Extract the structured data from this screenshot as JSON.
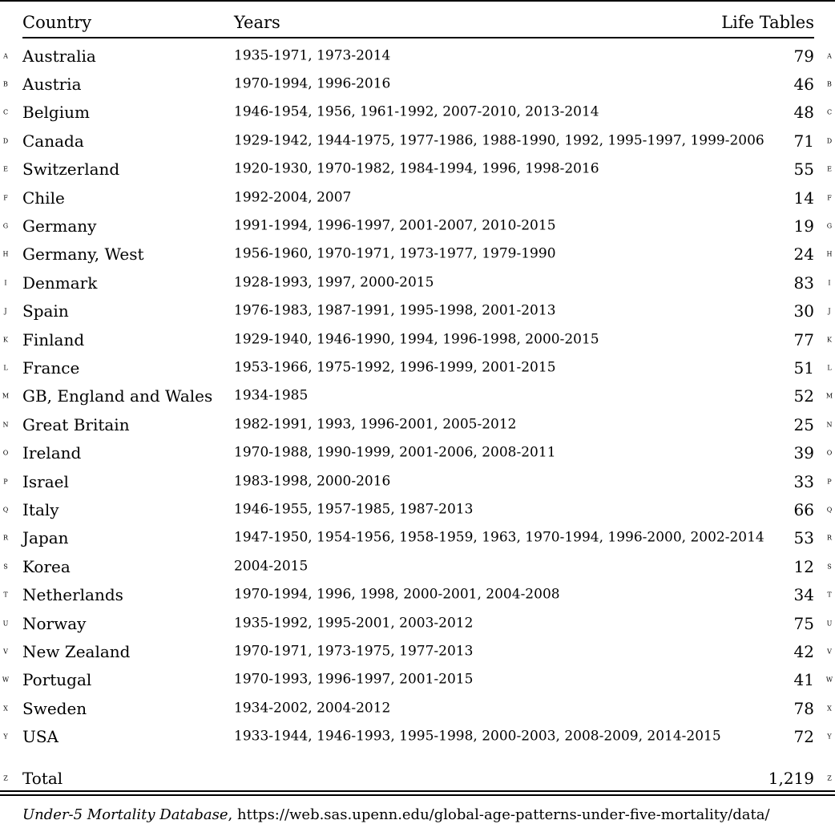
{
  "table": {
    "headers": {
      "country": "Country",
      "years": "Years",
      "life_tables": "Life Tables"
    },
    "rows": [
      {
        "label": "A",
        "country": "Australia",
        "years": "1935-1971, 1973-2014",
        "life_tables": "79"
      },
      {
        "label": "B",
        "country": "Austria",
        "years": "1970-1994, 1996-2016",
        "life_tables": "46"
      },
      {
        "label": "C",
        "country": "Belgium",
        "years": "1946-1954, 1956, 1961-1992, 2007-2010, 2013-2014",
        "life_tables": "48"
      },
      {
        "label": "D",
        "country": "Canada",
        "years": "1929-1942, 1944-1975, 1977-1986, 1988-1990, 1992, 1995-1997, 1999-2006",
        "life_tables": "71"
      },
      {
        "label": "E",
        "country": "Switzerland",
        "years": "1920-1930, 1970-1982, 1984-1994, 1996, 1998-2016",
        "life_tables": "55"
      },
      {
        "label": "F",
        "country": "Chile",
        "years": "1992-2004, 2007",
        "life_tables": "14"
      },
      {
        "label": "G",
        "country": "Germany",
        "years": "1991-1994, 1996-1997, 2001-2007, 2010-2015",
        "life_tables": "19"
      },
      {
        "label": "H",
        "country": "Germany, West",
        "years": "1956-1960, 1970-1971, 1973-1977, 1979-1990",
        "life_tables": "24"
      },
      {
        "label": "I",
        "country": "Denmark",
        "years": "1928-1993, 1997, 2000-2015",
        "life_tables": "83"
      },
      {
        "label": "J",
        "country": "Spain",
        "years": "1976-1983, 1987-1991, 1995-1998, 2001-2013",
        "life_tables": "30"
      },
      {
        "label": "K",
        "country": "Finland",
        "years": "1929-1940, 1946-1990, 1994, 1996-1998, 2000-2015",
        "life_tables": "77"
      },
      {
        "label": "L",
        "country": "France",
        "years": "1953-1966, 1975-1992, 1996-1999, 2001-2015",
        "life_tables": "51"
      },
      {
        "label": "M",
        "country": "GB, England and Wales",
        "years": "1934-1985",
        "life_tables": "52"
      },
      {
        "label": "N",
        "country": "Great Britain",
        "years": "1982-1991, 1993, 1996-2001, 2005-2012",
        "life_tables": "25"
      },
      {
        "label": "O",
        "country": "Ireland",
        "years": "1970-1988, 1990-1999, 2001-2006, 2008-2011",
        "life_tables": "39"
      },
      {
        "label": "P",
        "country": "Israel",
        "years": "1983-1998, 2000-2016",
        "life_tables": "33"
      },
      {
        "label": "Q",
        "country": "Italy",
        "years": "1946-1955, 1957-1985, 1987-2013",
        "life_tables": "66"
      },
      {
        "label": "R",
        "country": "Japan",
        "years": "1947-1950, 1954-1956, 1958-1959, 1963, 1970-1994, 1996-2000, 2002-2014",
        "life_tables": "53"
      },
      {
        "label": "S",
        "country": "Korea",
        "years": "2004-2015",
        "life_tables": "12"
      },
      {
        "label": "T",
        "country": "Netherlands",
        "years": "1970-1994, 1996, 1998, 2000-2001, 2004-2008",
        "life_tables": "34"
      },
      {
        "label": "U",
        "country": "Norway",
        "years": "1935-1992, 1995-2001, 2003-2012",
        "life_tables": "75"
      },
      {
        "label": "V",
        "country": "New Zealand",
        "years": "1970-1971, 1973-1975, 1977-2013",
        "life_tables": "42"
      },
      {
        "label": "W",
        "country": "Portugal",
        "years": "1970-1993, 1996-1997, 2001-2015",
        "life_tables": "41"
      },
      {
        "label": "X",
        "country": "Sweden",
        "years": "1934-2002, 2004-2012",
        "life_tables": "78"
      },
      {
        "label": "Y",
        "country": "USA",
        "years": "1933-1944, 1946-1993, 1995-1998, 2000-2003, 2008-2009, 2014-2015",
        "life_tables": "72"
      }
    ],
    "total": {
      "label": "Z",
      "country": "Total",
      "life_tables": "1,219"
    }
  },
  "footnote": {
    "source_name": "Under-5 Mortality Database",
    "source_url": ", https://web.sas.upenn.edu/global-age-patterns-under-five-mortality/data/"
  }
}
